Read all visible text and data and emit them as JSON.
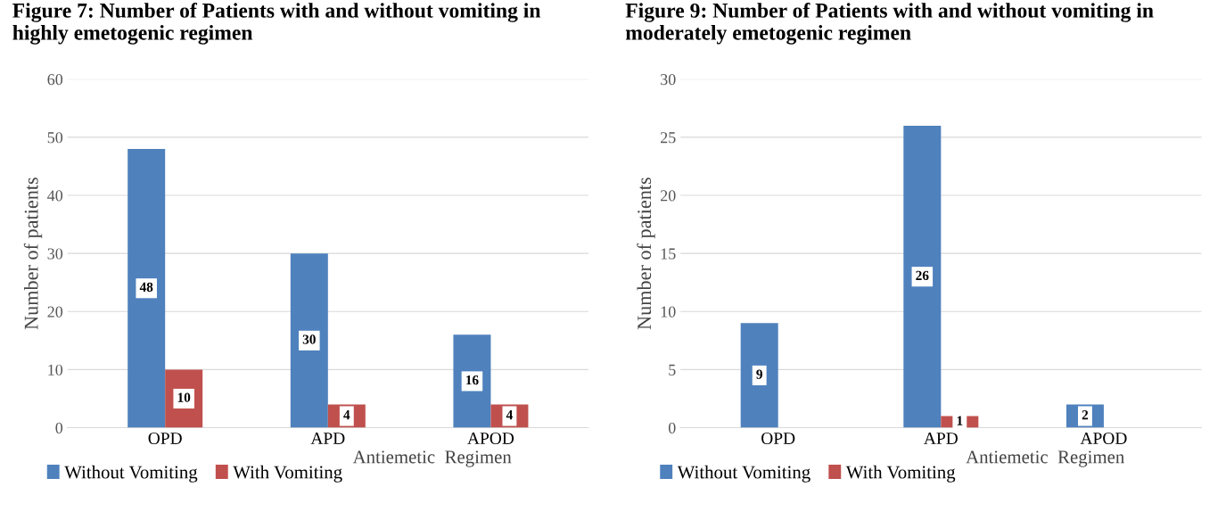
{
  "chart_data": [
    {
      "type": "bar",
      "title": "Figure 7: Number of Patients with and without vomiting in highly emetogenic regimen",
      "xlabel": "Antiemetic  Regimen",
      "ylabel": "Number of patients",
      "categories": [
        "OPD",
        "APD",
        "APOD"
      ],
      "series": [
        {
          "name": "Without Vomiting",
          "color": "#4f81bd",
          "values": [
            48,
            30,
            16
          ]
        },
        {
          "name": "With Vomiting",
          "color": "#c0504d",
          "values": [
            10,
            4,
            4
          ]
        }
      ],
      "ylim": [
        0,
        60
      ],
      "yticks": [
        0,
        10,
        20,
        30,
        40,
        50,
        60
      ],
      "grid": "y",
      "legend": "bottom left",
      "data_labels": true
    },
    {
      "type": "bar",
      "title": "Figure 9: Number of Patients with and without vomiting in moderately emetogenic regimen",
      "xlabel": "Antiemetic  Regimen",
      "ylabel": "Number of patients",
      "categories": [
        "OPD",
        "APD",
        "APOD"
      ],
      "series": [
        {
          "name": "Without Vomiting",
          "color": "#4f81bd",
          "values": [
            9,
            26,
            2
          ]
        },
        {
          "name": "With Vomiting",
          "color": "#c0504d",
          "values": [
            null,
            1,
            null
          ]
        }
      ],
      "ylim": [
        0,
        30
      ],
      "yticks": [
        0,
        5,
        10,
        15,
        20,
        25,
        30
      ],
      "grid": "y",
      "legend": "bottom left",
      "data_labels": true
    }
  ]
}
